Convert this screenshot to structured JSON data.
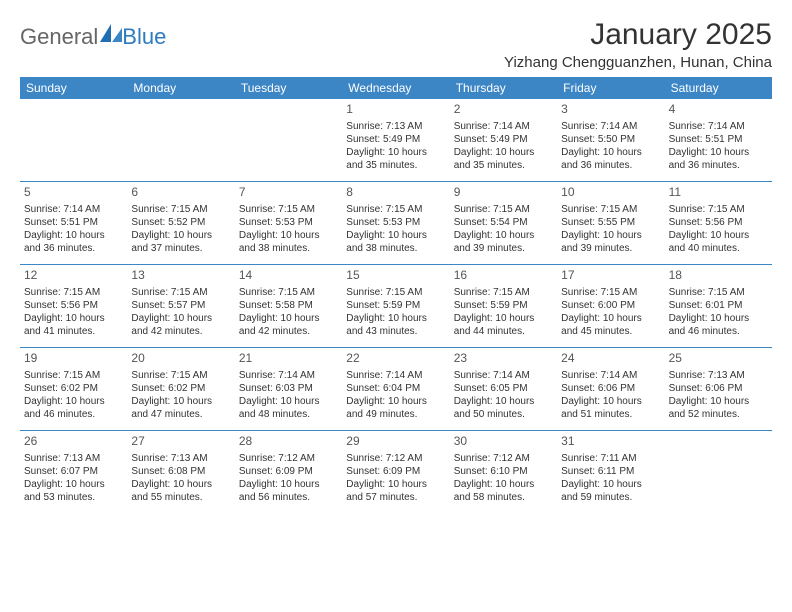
{
  "logo": {
    "text1": "General",
    "text2": "Blue"
  },
  "title": "January 2025",
  "location": "Yizhang Chengguanzhen, Hunan, China",
  "colors": {
    "header_bg": "#3d86c6",
    "header_text": "#ffffff",
    "rule": "#3d86c6",
    "body_text": "#333333",
    "background": "#ffffff"
  },
  "day_names": [
    "Sunday",
    "Monday",
    "Tuesday",
    "Wednesday",
    "Thursday",
    "Friday",
    "Saturday"
  ],
  "weeks": [
    [
      null,
      null,
      null,
      {
        "n": "1",
        "sr": "7:13 AM",
        "ss": "5:49 PM",
        "dl": "10 hours and 35 minutes."
      },
      {
        "n": "2",
        "sr": "7:14 AM",
        "ss": "5:49 PM",
        "dl": "10 hours and 35 minutes."
      },
      {
        "n": "3",
        "sr": "7:14 AM",
        "ss": "5:50 PM",
        "dl": "10 hours and 36 minutes."
      },
      {
        "n": "4",
        "sr": "7:14 AM",
        "ss": "5:51 PM",
        "dl": "10 hours and 36 minutes."
      }
    ],
    [
      {
        "n": "5",
        "sr": "7:14 AM",
        "ss": "5:51 PM",
        "dl": "10 hours and 36 minutes."
      },
      {
        "n": "6",
        "sr": "7:15 AM",
        "ss": "5:52 PM",
        "dl": "10 hours and 37 minutes."
      },
      {
        "n": "7",
        "sr": "7:15 AM",
        "ss": "5:53 PM",
        "dl": "10 hours and 38 minutes."
      },
      {
        "n": "8",
        "sr": "7:15 AM",
        "ss": "5:53 PM",
        "dl": "10 hours and 38 minutes."
      },
      {
        "n": "9",
        "sr": "7:15 AM",
        "ss": "5:54 PM",
        "dl": "10 hours and 39 minutes."
      },
      {
        "n": "10",
        "sr": "7:15 AM",
        "ss": "5:55 PM",
        "dl": "10 hours and 39 minutes."
      },
      {
        "n": "11",
        "sr": "7:15 AM",
        "ss": "5:56 PM",
        "dl": "10 hours and 40 minutes."
      }
    ],
    [
      {
        "n": "12",
        "sr": "7:15 AM",
        "ss": "5:56 PM",
        "dl": "10 hours and 41 minutes."
      },
      {
        "n": "13",
        "sr": "7:15 AM",
        "ss": "5:57 PM",
        "dl": "10 hours and 42 minutes."
      },
      {
        "n": "14",
        "sr": "7:15 AM",
        "ss": "5:58 PM",
        "dl": "10 hours and 42 minutes."
      },
      {
        "n": "15",
        "sr": "7:15 AM",
        "ss": "5:59 PM",
        "dl": "10 hours and 43 minutes."
      },
      {
        "n": "16",
        "sr": "7:15 AM",
        "ss": "5:59 PM",
        "dl": "10 hours and 44 minutes."
      },
      {
        "n": "17",
        "sr": "7:15 AM",
        "ss": "6:00 PM",
        "dl": "10 hours and 45 minutes."
      },
      {
        "n": "18",
        "sr": "7:15 AM",
        "ss": "6:01 PM",
        "dl": "10 hours and 46 minutes."
      }
    ],
    [
      {
        "n": "19",
        "sr": "7:15 AM",
        "ss": "6:02 PM",
        "dl": "10 hours and 46 minutes."
      },
      {
        "n": "20",
        "sr": "7:15 AM",
        "ss": "6:02 PM",
        "dl": "10 hours and 47 minutes."
      },
      {
        "n": "21",
        "sr": "7:14 AM",
        "ss": "6:03 PM",
        "dl": "10 hours and 48 minutes."
      },
      {
        "n": "22",
        "sr": "7:14 AM",
        "ss": "6:04 PM",
        "dl": "10 hours and 49 minutes."
      },
      {
        "n": "23",
        "sr": "7:14 AM",
        "ss": "6:05 PM",
        "dl": "10 hours and 50 minutes."
      },
      {
        "n": "24",
        "sr": "7:14 AM",
        "ss": "6:06 PM",
        "dl": "10 hours and 51 minutes."
      },
      {
        "n": "25",
        "sr": "7:13 AM",
        "ss": "6:06 PM",
        "dl": "10 hours and 52 minutes."
      }
    ],
    [
      {
        "n": "26",
        "sr": "7:13 AM",
        "ss": "6:07 PM",
        "dl": "10 hours and 53 minutes."
      },
      {
        "n": "27",
        "sr": "7:13 AM",
        "ss": "6:08 PM",
        "dl": "10 hours and 55 minutes."
      },
      {
        "n": "28",
        "sr": "7:12 AM",
        "ss": "6:09 PM",
        "dl": "10 hours and 56 minutes."
      },
      {
        "n": "29",
        "sr": "7:12 AM",
        "ss": "6:09 PM",
        "dl": "10 hours and 57 minutes."
      },
      {
        "n": "30",
        "sr": "7:12 AM",
        "ss": "6:10 PM",
        "dl": "10 hours and 58 minutes."
      },
      {
        "n": "31",
        "sr": "7:11 AM",
        "ss": "6:11 PM",
        "dl": "10 hours and 59 minutes."
      },
      null
    ]
  ],
  "labels": {
    "sunrise": "Sunrise:",
    "sunset": "Sunset:",
    "daylight": "Daylight:"
  }
}
